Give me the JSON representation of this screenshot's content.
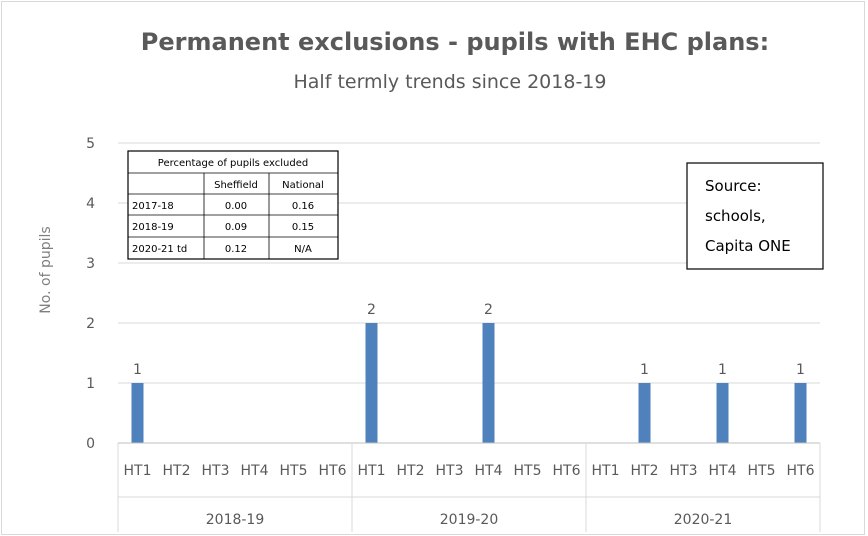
{
  "chart_data": {
    "type": "bar",
    "title": "Permanent exclusions - pupils with EHC plans:",
    "subtitle": "Half termly trends since 2018-19",
    "ylabel": "No. of pupils",
    "xlabel": "",
    "ylim": [
      0,
      5
    ],
    "yticks": [
      "0",
      "1",
      "2",
      "3",
      "4",
      "5"
    ],
    "grid": true,
    "groups": [
      {
        "label": "2018-19",
        "categories": [
          "HT1",
          "HT2",
          "HT3",
          "HT4",
          "HT5",
          "HT6"
        ],
        "values": [
          1,
          0,
          0,
          0,
          0,
          0
        ]
      },
      {
        "label": "2019-20",
        "categories": [
          "HT1",
          "HT2",
          "HT3",
          "HT4",
          "HT5",
          "HT6"
        ],
        "values": [
          2,
          0,
          0,
          2,
          0,
          0
        ]
      },
      {
        "label": "2020-21",
        "categories": [
          "HT1",
          "HT2",
          "HT3",
          "HT4",
          "HT5",
          "HT6"
        ],
        "values": [
          0,
          1,
          0,
          1,
          0,
          1
        ]
      }
    ],
    "data_labels": [
      {
        "group": 0,
        "index": 0,
        "text": "1"
      },
      {
        "group": 1,
        "index": 0,
        "text": "2"
      },
      {
        "group": 1,
        "index": 3,
        "text": "2"
      },
      {
        "group": 2,
        "index": 1,
        "text": "1"
      },
      {
        "group": 2,
        "index": 3,
        "text": "1"
      },
      {
        "group": 2,
        "index": 5,
        "text": "1"
      }
    ],
    "bar_color": "#4f81bd"
  },
  "inset_table": {
    "title": "Percentage of pupils excluded",
    "headers": [
      "",
      "Sheffield",
      "National"
    ],
    "rows": [
      [
        "2017-18",
        "0.00",
        "0.16"
      ],
      [
        "2018-19",
        "0.09",
        "0.15"
      ],
      [
        "2020-21 td",
        "0.12",
        "N/A"
      ]
    ]
  },
  "source_box": {
    "lines": [
      "Source:",
      "schools,",
      "Capita ONE"
    ]
  }
}
